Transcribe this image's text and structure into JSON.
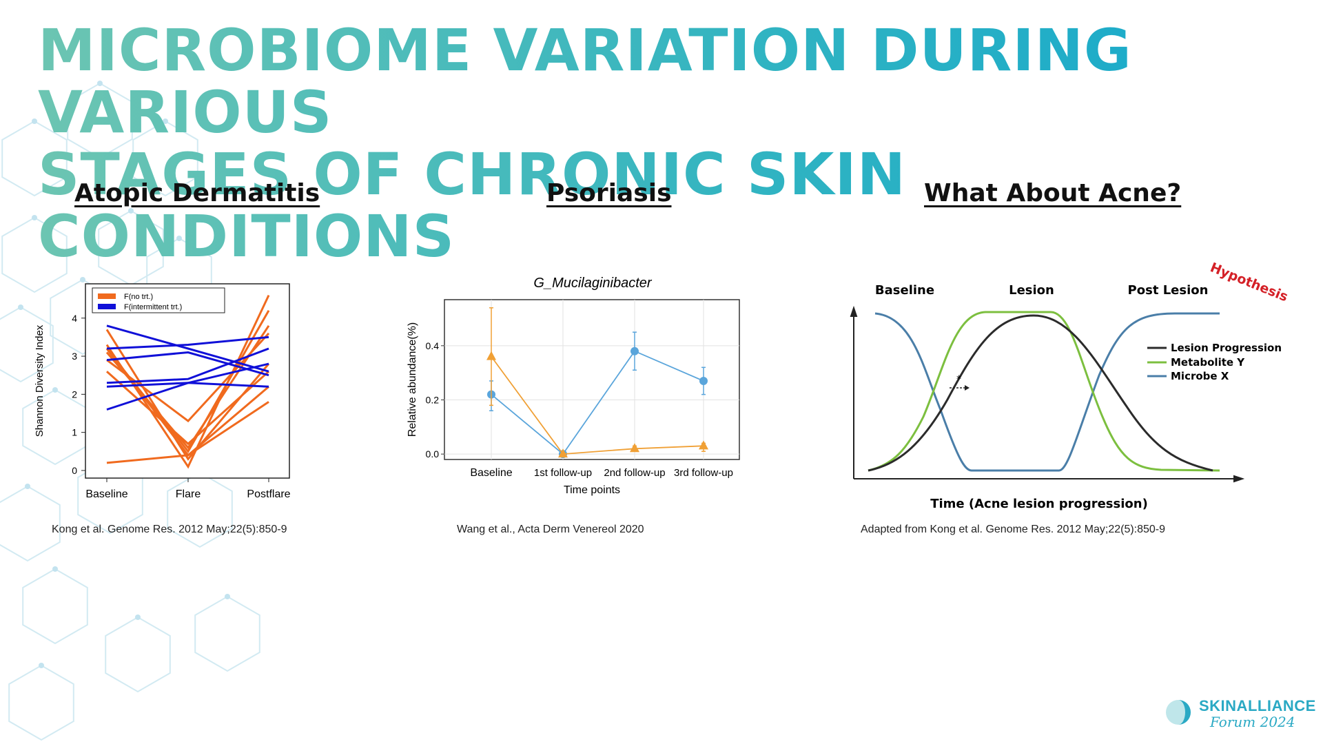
{
  "title_line1": "MICROBIOME VARIATION DURING VARIOUS",
  "title_line2": "STAGES OF CHRONIC SKIN CONDITIONS",
  "panels": {
    "atopic": {
      "heading": "Atopic Dermatitis",
      "citation": "Kong et al. Genome Res. 2012 May;22(5):850-9"
    },
    "psoriasis": {
      "heading": "Psoriasis",
      "citation": "Wang et al., Acta Derm Venereol 2020"
    },
    "acne": {
      "heading": "What About Acne?",
      "citation": "Adapted from Kong et al. Genome Res. 2012 May;22(5):850-9",
      "hypothesis": "Hypothesis",
      "star": "*"
    }
  },
  "logo": {
    "word": "SKINALLIANCE",
    "sub": "Forum 2024"
  },
  "colors": {
    "orange": "#f06a1e",
    "blue": "#1010d8",
    "teal_title": "#2fb3c2",
    "psor_blue": "#5aa5db",
    "psor_orange": "#f0a035",
    "acne_black": "#2b2b2b",
    "acne_green": "#7cbf3f",
    "acne_blue": "#4a7ea8",
    "hypothesis_red": "#d42027"
  },
  "chart_data": [
    {
      "type": "line",
      "title": "",
      "xlabel": "",
      "ylabel": "Shannon Diversity Index",
      "categories": [
        "Baseline",
        "Flare",
        "Postflare"
      ],
      "ylim": [
        -0.2,
        4.9
      ],
      "yticks": [
        0,
        1,
        2,
        3,
        4
      ],
      "legend": {
        "position": "top-left",
        "entries": [
          "F(no trt.)",
          "F(intermittent trt.)"
        ]
      },
      "series": [
        {
          "name": "F(no trt.)",
          "color": "#f06a1e",
          "lines": [
            [
              3.3,
              0.1,
              4.6
            ],
            [
              3.2,
              0.5,
              4.2
            ],
            [
              3.1,
              0.6,
              3.8
            ],
            [
              2.9,
              1.3,
              3.6
            ],
            [
              3.7,
              0.3,
              2.8
            ],
            [
              2.6,
              0.7,
              2.6
            ],
            [
              3.2,
              0.4,
              2.2
            ],
            [
              0.2,
              0.4,
              1.8
            ]
          ]
        },
        {
          "name": "F(intermittent trt.)",
          "color": "#1010d8",
          "lines": [
            [
              3.8,
              3.2,
              2.6
            ],
            [
              3.2,
              3.3,
              3.5
            ],
            [
              2.9,
              3.1,
              2.5
            ],
            [
              2.3,
              2.4,
              3.2
            ],
            [
              2.2,
              2.3,
              2.2
            ],
            [
              1.6,
              2.3,
              2.8
            ]
          ]
        }
      ]
    },
    {
      "type": "line",
      "title": "G_Mucilaginibacter",
      "xlabel": "Time points",
      "ylabel": "Relative abundance(%)",
      "categories": [
        "Baseline",
        "1st follow-up",
        "2nd follow-up",
        "3rd follow-up"
      ],
      "ylim": [
        -0.02,
        0.57
      ],
      "yticks": [
        0.0,
        0.2,
        0.4
      ],
      "yticklabels": [
        "0.0",
        "0.2",
        "0.4"
      ],
      "series": [
        {
          "marker": "circle",
          "color": "#5aa5db",
          "values": [
            0.22,
            0.0,
            0.38,
            0.27
          ],
          "err_low": [
            0.16,
            0.0,
            0.31,
            0.22
          ],
          "err_high": [
            0.27,
            0.0,
            0.45,
            0.32
          ]
        },
        {
          "marker": "triangle",
          "color": "#f0a035",
          "values": [
            0.36,
            0.0,
            0.02,
            0.03
          ],
          "err_low": [
            0.18,
            0.0,
            0.01,
            0.01
          ],
          "err_high": [
            0.54,
            0.0,
            0.03,
            0.04
          ]
        }
      ]
    },
    {
      "type": "line",
      "title": "",
      "xlabel": "Time (Acne lesion progression)",
      "ylabel": "",
      "stage_labels": [
        "Baseline",
        "Lesion",
        "Post Lesion"
      ],
      "legend": {
        "position": "right",
        "entries": [
          "Lesion Progression",
          "Metabolite Y",
          "Microbe X"
        ]
      },
      "series": [
        {
          "name": "Lesion Progression",
          "color": "#2b2b2b",
          "shape": "rise-and-fall"
        },
        {
          "name": "Metabolite Y",
          "color": "#7cbf3f",
          "shape": "plateau-high"
        },
        {
          "name": "Microbe X",
          "color": "#4a7ea8",
          "shape": "dip-low"
        }
      ]
    }
  ]
}
